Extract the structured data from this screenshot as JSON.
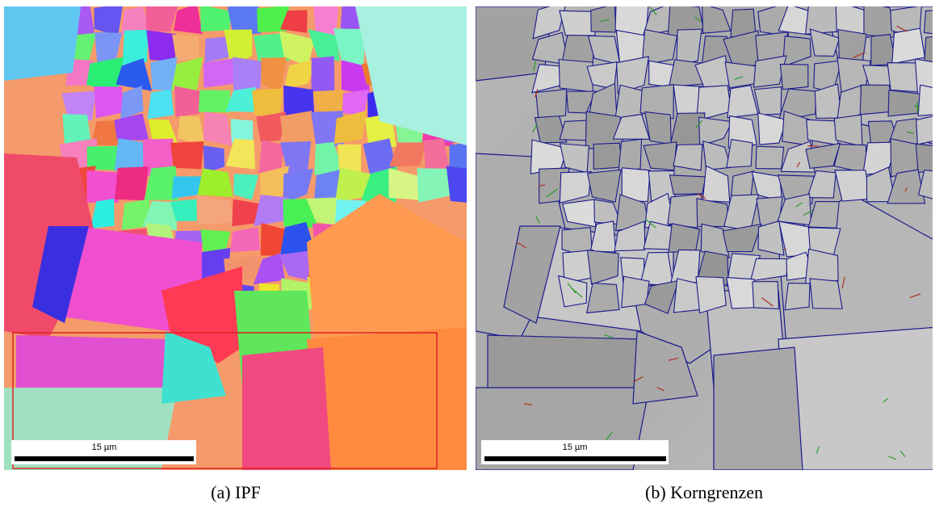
{
  "panels": [
    {
      "scale_bar": "15 µm",
      "caption": "(a) IPF"
    },
    {
      "scale_bar": "15 µm",
      "caption": "(b) Korngrenzen"
    }
  ]
}
